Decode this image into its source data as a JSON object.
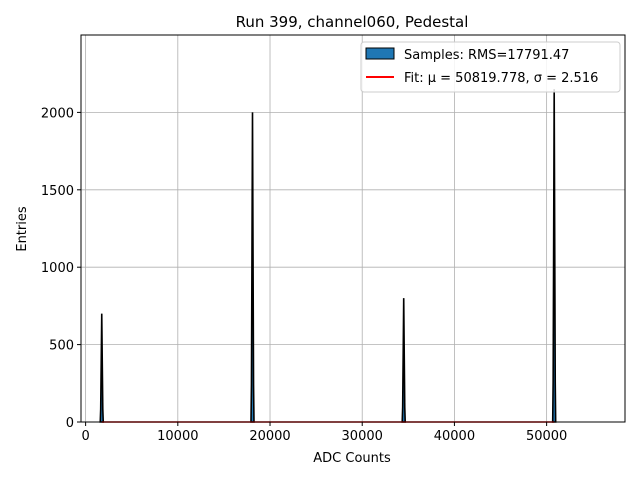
{
  "chart_data": {
    "type": "bar",
    "title": "Run 399, channel060, Pedestal",
    "xlabel": "ADC Counts",
    "ylabel": "Entries",
    "xlim": [
      -500,
      58500
    ],
    "ylim": [
      0,
      2500
    ],
    "x_ticks": [
      0,
      10000,
      20000,
      30000,
      40000,
      50000
    ],
    "y_ticks": [
      0,
      500,
      1000,
      1500,
      2000
    ],
    "grid": true,
    "legend_position": "top-right",
    "series": [
      {
        "name": "Samples: RMS=17791.47",
        "kind": "histogram",
        "color": "#1f77b4",
        "edge_color": "#000000",
        "peaks": [
          {
            "center": 1750,
            "height": 700,
            "width": 170
          },
          {
            "center": 18100,
            "height": 2000,
            "width": 170
          },
          {
            "center": 34500,
            "height": 800,
            "width": 170
          },
          {
            "center": 50820,
            "height": 2150,
            "width": 170
          }
        ]
      },
      {
        "name": "Fit: μ = 50819.778, σ = 2.516",
        "kind": "line",
        "color": "#ff0000",
        "x_range": [
          1750,
          50820
        ],
        "y_value": 0
      }
    ]
  }
}
